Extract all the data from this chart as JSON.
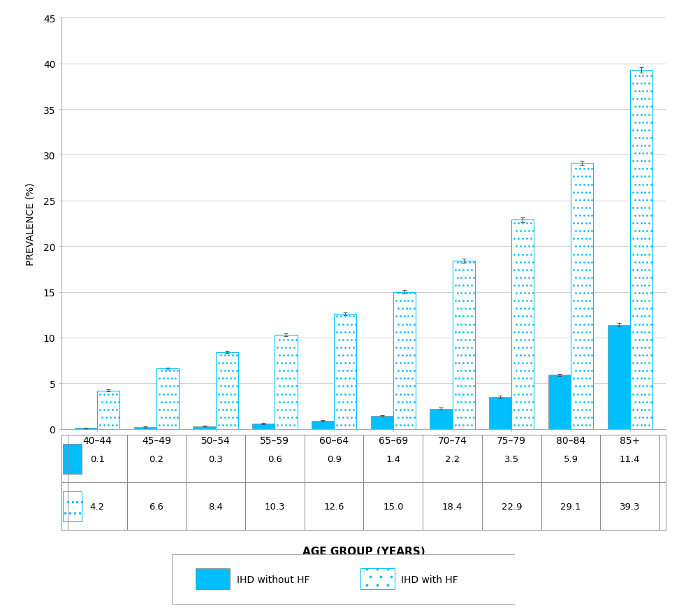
{
  "categories": [
    "40–44",
    "45–49",
    "50–54",
    "55–59",
    "60–64",
    "65–69",
    "70–74",
    "75–79",
    "80–84",
    "85+"
  ],
  "ihd_without_hf": [
    0.1,
    0.2,
    0.3,
    0.6,
    0.9,
    1.4,
    2.2,
    3.5,
    5.9,
    11.4
  ],
  "ihd_with_hf": [
    4.2,
    6.6,
    8.4,
    10.3,
    12.6,
    15.0,
    18.4,
    22.9,
    29.1,
    39.3
  ],
  "ihd_without_hf_err": [
    0.05,
    0.05,
    0.06,
    0.07,
    0.09,
    0.09,
    0.12,
    0.14,
    0.15,
    0.18
  ],
  "ihd_with_hf_err": [
    0.1,
    0.13,
    0.13,
    0.16,
    0.18,
    0.16,
    0.2,
    0.25,
    0.22,
    0.28
  ],
  "bar_color_solid": "#00BFFF",
  "bar_color_dotted_face": "#ffffff",
  "bar_color_dotted_edge": "#00BFFF",
  "dot_color": "#00BFFF",
  "ylabel": "PREVALENCE (%)",
  "xlabel": "AGE GROUP (YEARS)",
  "ylim": [
    0,
    45
  ],
  "yticks": [
    0,
    5,
    10,
    15,
    20,
    25,
    30,
    35,
    40,
    45
  ],
  "legend_label_solid": "IHD without HF",
  "legend_label_dotted": "IHD with HF",
  "background_color": "#ffffff",
  "grid_color": "#d0d0d0",
  "bar_width": 0.38,
  "table_row1_values": [
    "0.1",
    "0.2",
    "0.3",
    "0.6",
    "0.9",
    "1.4",
    "2.2",
    "3.5",
    "5.9",
    "11.4"
  ],
  "table_row2_values": [
    "4.2",
    "6.6",
    "8.4",
    "10.3",
    "12.6",
    "15.0",
    "18.4",
    "22.9",
    "29.1",
    "39.3"
  ]
}
